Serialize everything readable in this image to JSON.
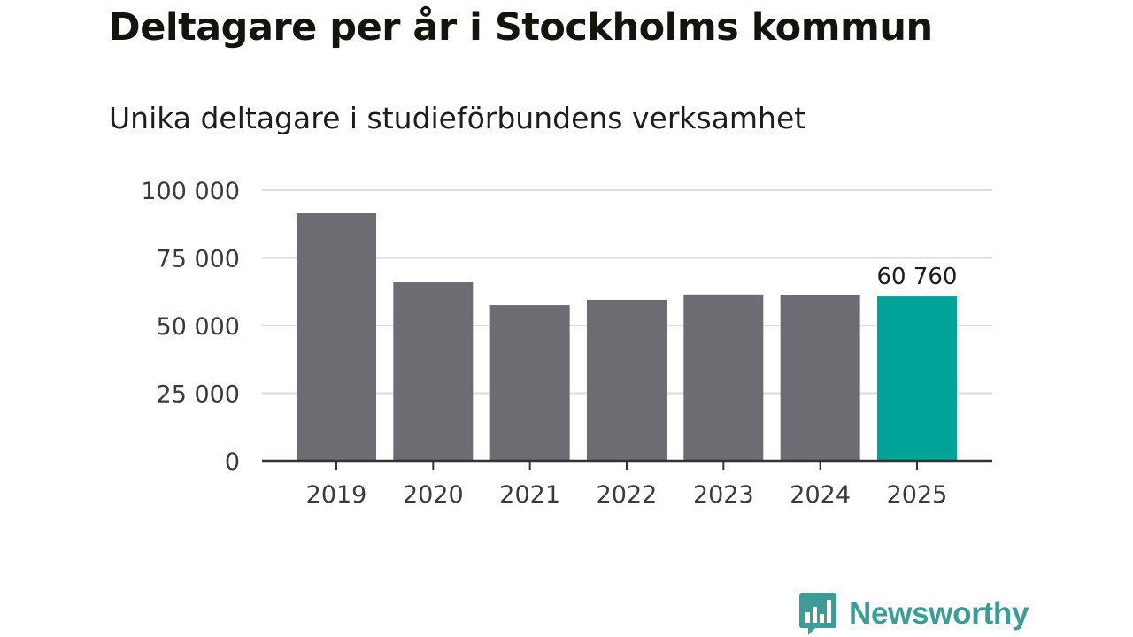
{
  "header": {
    "title": "Deltagare per år i Stockholms kommun",
    "subtitle": "Unika deltagare i studieförbundens verksamhet"
  },
  "colors": {
    "bar_default": "#6d6c72",
    "bar_highlight": "#00a398",
    "grid": "#dcdcdc",
    "axis": "#333333",
    "logo": "#3a9e97"
  },
  "logo": {
    "name": "Newsworthy",
    "icon": "newsworthy-chart-bubble-icon"
  },
  "chart_data": {
    "type": "bar",
    "title": "Deltagare per år i Stockholms kommun",
    "subtitle": "Unika deltagare i studieförbundens verksamhet",
    "xlabel": "",
    "ylabel": "",
    "categories": [
      "2019",
      "2020",
      "2021",
      "2022",
      "2023",
      "2024",
      "2025"
    ],
    "values": [
      91500,
      66000,
      57500,
      59500,
      61500,
      61200,
      60760
    ],
    "highlight_index": 6,
    "data_labels": [
      {
        "index": 6,
        "text": "60 760"
      }
    ],
    "ylim": [
      0,
      100000
    ],
    "yticks": [
      0,
      25000,
      50000,
      75000,
      100000
    ],
    "ytick_labels": [
      "0",
      "25 000",
      "50 000",
      "75 000",
      "100 000"
    ],
    "grid": true,
    "legend": "none"
  }
}
